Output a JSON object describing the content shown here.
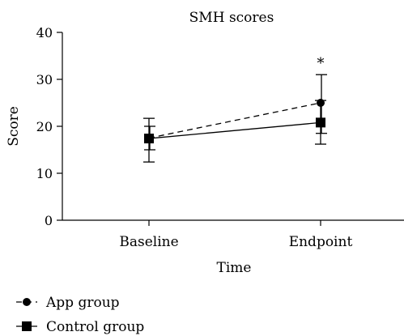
{
  "chart_data": {
    "type": "line",
    "title": "SMH scores",
    "xlabel": "Time",
    "ylabel": "Score",
    "categories": [
      "Baseline",
      "Endpoint"
    ],
    "ylim": [
      0,
      40
    ],
    "yticks": [
      0,
      10,
      20,
      30,
      40
    ],
    "grid": false,
    "legend_position": "bottom-left",
    "series": [
      {
        "name": "App group",
        "values": [
          17.5,
          25
        ],
        "error_low": [
          15,
          18.5
        ],
        "error_high": [
          20,
          31
        ],
        "marker": "circle",
        "line_style": "dashed",
        "color": "#000000"
      },
      {
        "name": "Control group",
        "values": [
          17.4,
          20.8
        ],
        "error_low": [
          12.4,
          16.2
        ],
        "error_high": [
          21.7,
          25.5
        ],
        "marker": "square",
        "line_style": "solid",
        "color": "#000000"
      }
    ],
    "annotations": [
      {
        "text": "*",
        "category": "Endpoint",
        "y": 31
      }
    ]
  }
}
